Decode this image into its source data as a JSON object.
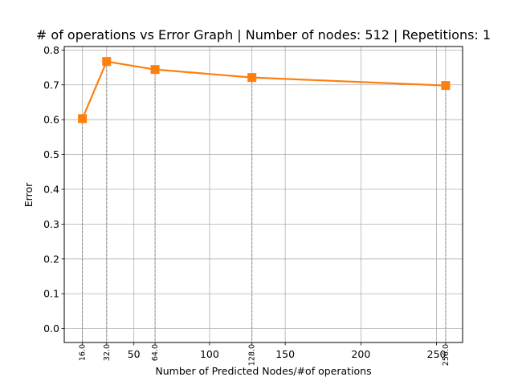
{
  "chart_data": {
    "type": "line",
    "title": "# of operations vs Error Graph | Number of nodes: 512 | Repetitions: 1",
    "xlabel": "Number of Predicted Nodes/#of operations",
    "ylabel": "Error",
    "xlim": [
      4.0,
      267.2
    ],
    "ylim": [
      -0.04,
      0.81
    ],
    "x_ticks": [
      50,
      100,
      150,
      200,
      250
    ],
    "x_tick_labels": [
      "50",
      "100",
      "150",
      "200",
      "250"
    ],
    "y_ticks": [
      0.0,
      0.1,
      0.2,
      0.3,
      0.4,
      0.5,
      0.6,
      0.7,
      0.8
    ],
    "y_tick_labels": [
      "0.0",
      "0.1",
      "0.2",
      "0.3",
      "0.4",
      "0.5",
      "0.6",
      "0.7",
      "0.8"
    ],
    "grid": true,
    "x": [
      16,
      32,
      64,
      128,
      256
    ],
    "x_point_labels": [
      "16.0",
      "32.0",
      "64.0",
      "128.0",
      "256.0"
    ],
    "values": [
      0.603,
      0.767,
      0.744,
      0.721,
      0.698
    ],
    "line_color": "#ff7f0e",
    "guide_color": "#808080",
    "marker": "square"
  }
}
